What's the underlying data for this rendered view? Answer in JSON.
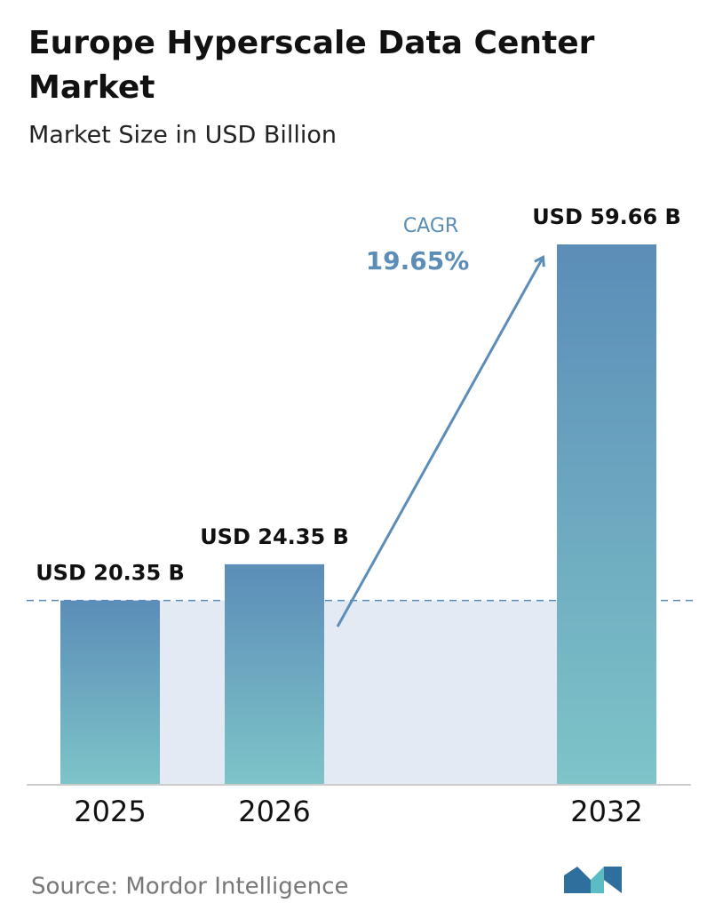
{
  "chart_data": {
    "type": "bar",
    "title": "Europe Hyperscale Data Center Market",
    "subtitle": "Market Size in USD Billion",
    "categories": [
      "2025",
      "2026",
      "2032"
    ],
    "values": [
      20.35,
      24.35,
      59.66
    ],
    "value_labels": [
      "USD 20.35 B",
      "USD 24.35 B",
      "USD 59.66 B"
    ],
    "cagr_label": "CAGR",
    "cagr_value": "19.65%",
    "source": "Source:  Mordor Intelligence",
    "color_top": "#5b8db8",
    "color_bottom": "#7ec4c8"
  }
}
